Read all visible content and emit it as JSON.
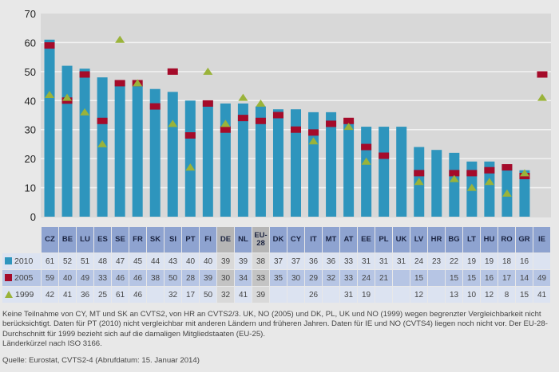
{
  "colors": {
    "bar_2010": "#2e95bd",
    "marker_2005": "#a50b2a",
    "marker_1999": "#9ab33a",
    "plot_bg": "#d8d8d8",
    "gridline": "#f2f2f2",
    "header_bg": "#8ea3d0",
    "highlight_bg": "#b5b5b5"
  },
  "chart_data": {
    "type": "bar",
    "title": "",
    "xlabel": "",
    "ylabel": "",
    "ylim": [
      0,
      70
    ],
    "yticks": [
      0,
      10,
      20,
      30,
      40,
      50,
      60,
      70
    ],
    "grid": true,
    "legend_placement": "table-left",
    "categories": [
      "CZ",
      "BE",
      "LU",
      "ES",
      "SE",
      "FR",
      "SK",
      "SI",
      "PT",
      "FI",
      "DE",
      "NL",
      "EU-28",
      "DK",
      "CY",
      "IT",
      "MT",
      "AT",
      "EE",
      "PL",
      "UK",
      "LV",
      "HR",
      "BG",
      "LT",
      "HU",
      "RO",
      "GR",
      "IE"
    ],
    "highlighted_categories": [
      "DE",
      "EU-28"
    ],
    "series": [
      {
        "name": "2010",
        "kind": "bar",
        "marker": "square",
        "values": [
          61,
          52,
          51,
          48,
          47,
          45,
          44,
          43,
          40,
          40,
          39,
          39,
          38,
          37,
          37,
          36,
          36,
          33,
          31,
          31,
          31,
          24,
          23,
          22,
          19,
          19,
          18,
          16,
          null
        ]
      },
      {
        "name": "2005",
        "kind": "dash",
        "marker": "square",
        "values": [
          59,
          40,
          49,
          33,
          46,
          46,
          38,
          50,
          28,
          39,
          30,
          34,
          33,
          35,
          30,
          29,
          32,
          33,
          24,
          21,
          null,
          15,
          null,
          15,
          15,
          16,
          17,
          14,
          49
        ]
      },
      {
        "name": "1999",
        "kind": "triangle",
        "marker": "triangle",
        "values": [
          42,
          41,
          36,
          25,
          61,
          46,
          null,
          32,
          17,
          50,
          32,
          41,
          39,
          null,
          null,
          26,
          null,
          31,
          19,
          null,
          null,
          12,
          null,
          13,
          10,
          12,
          8,
          15,
          41
        ]
      }
    ]
  },
  "table": {
    "header_labels": [
      "CZ",
      "BE",
      "LU",
      "ES",
      "SE",
      "FR",
      "SK",
      "SI",
      "PT",
      "FI",
      "DE",
      "NL",
      "EU-\n28",
      "DK",
      "CY",
      "IT",
      "MT",
      "AT",
      "EE",
      "PL",
      "UK",
      "LV",
      "HR",
      "BG",
      "LT",
      "HU",
      "RO",
      "GR",
      "IE"
    ],
    "rows": [
      {
        "label": "2010",
        "icon": "square-icon-2010",
        "cells": [
          "61",
          "52",
          "51",
          "48",
          "47",
          "45",
          "44",
          "43",
          "40",
          "40",
          "39",
          "39",
          "38",
          "37",
          "37",
          "36",
          "36",
          "33",
          "31",
          "31",
          "31",
          "24",
          "23",
          "22",
          "19",
          "19",
          "18",
          "16",
          ""
        ]
      },
      {
        "label": "2005",
        "icon": "square-icon-2005",
        "cells": [
          "59",
          "40",
          "49",
          "33",
          "46",
          "46",
          "38",
          "50",
          "28",
          "39",
          "30",
          "34",
          "33",
          "35",
          "30",
          "29",
          "32",
          "33",
          "24",
          "21",
          "",
          "15",
          "",
          "15",
          "15",
          "16",
          "17",
          "14",
          "49"
        ]
      },
      {
        "label": "1999",
        "icon": "triangle-icon-1999",
        "cells": [
          "42",
          "41",
          "36",
          "25",
          "61",
          "46",
          "",
          "32",
          "17",
          "50",
          "32",
          "41",
          "39",
          "",
          "",
          "26",
          "",
          "31",
          "19",
          "",
          "",
          "12",
          "",
          "13",
          "10",
          "12",
          "8",
          "15",
          "41"
        ]
      }
    ]
  },
  "notes": {
    "line1": "Keine Teilnahme von CY, MT und SK an CVTS2, von HR an CVTS2/3. UK, NO (2005) und DK, PL, UK und NO (1999) wegen begrenzter Vergleichbarkeit nicht berücksichtigt. Daten für PT (2010) nicht vergleichbar mit anderen Ländern und früheren Jahren. Daten für IE und NO (CVTS4) liegen noch nicht vor. Der EU-28-Durchschnitt für 1999 bezieht sich auf die damaligen Mitgliedstaaten (EU-25).",
    "line2": "Länderkürzel nach ISO 3166.",
    "source": "Quelle: Eurostat, CVTS2-4 (Abrufdatum: 15. Januar 2014)"
  }
}
